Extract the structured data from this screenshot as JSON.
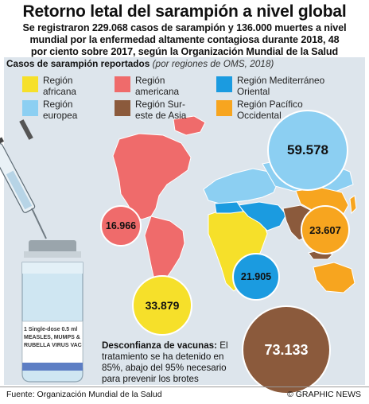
{
  "header": {
    "title": "Retorno letal del sarampión a nivel global",
    "lead_lines": [
      "Se registraron 229.068 casos de sarampión y 136.000 muertes a nivel",
      "mundial por la enfermedad altamente contagiosa durante 2018, 48",
      "por ciento sobre 2017, según la Organización Mundial de la Salud"
    ]
  },
  "panel": {
    "heading": "Casos de sarampión reportados",
    "subheading": "(por regiones de OMS, 2018)"
  },
  "legend": [
    {
      "lines": [
        "Región",
        "africana"
      ],
      "color": "#f6e02a"
    },
    {
      "lines": [
        "Región",
        "americana"
      ],
      "color": "#ef6b6b"
    },
    {
      "lines": [
        "Región Mediterráneo",
        "Oriental"
      ],
      "color": "#1b9be0"
    },
    {
      "lines": [
        "Región",
        "europea"
      ],
      "color": "#8ccff2"
    },
    {
      "lines": [
        "Región Sur-",
        "este de Asia"
      ],
      "color": "#8b5a3c"
    },
    {
      "lines": [
        "Región Pacífico",
        "Occidental"
      ],
      "color": "#f7a51f"
    }
  ],
  "bubbles": {
    "europe": "59.578",
    "americas": "16.966",
    "western_pacific": "23.607",
    "eastern_mediterranean": "21.905",
    "africa": "33.879",
    "south_east_asia": "73.133"
  },
  "vial_label": [
    "1 Single-dose 0.5 ml",
    "MEASLES, MUMPS &",
    "RUBELLA VIRUS VAC"
  ],
  "note": {
    "title": "Desconfianza de vacunas:",
    "text": "El tratamiento se ha detenido en 85%, abajo del 95% necesario para prevenir los brotes"
  },
  "footer": {
    "source": "Fuente: Organización Mundial de la Salud",
    "credit": "© GRAPHIC NEWS"
  }
}
